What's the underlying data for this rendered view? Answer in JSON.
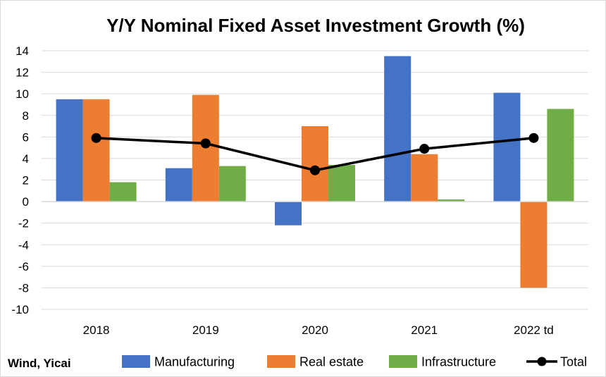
{
  "chart_data": {
    "type": "bar",
    "title": "Y/Y Nominal Fixed Asset Investment Growth (%)",
    "source": "Wind, Yicai",
    "categories": [
      "2018",
      "2019",
      "2020",
      "2021",
      "2022 td"
    ],
    "ylim": [
      -10,
      14
    ],
    "yticks": [
      14,
      12,
      10,
      8,
      6,
      4,
      2,
      0,
      -2,
      -4,
      -6,
      -8,
      -10
    ],
    "grid": true,
    "legend_position": "bottom",
    "series": [
      {
        "name": "Manufacturing",
        "type": "bar",
        "color": "#4472C4",
        "values": [
          9.5,
          3.1,
          -2.2,
          13.5,
          10.1
        ]
      },
      {
        "name": "Real estate",
        "type": "bar",
        "color": "#ED7D31",
        "values": [
          9.5,
          9.9,
          7.0,
          4.4,
          -8.0
        ]
      },
      {
        "name": "Infrastructure",
        "type": "bar",
        "color": "#70AD47",
        "values": [
          1.8,
          3.3,
          3.4,
          0.2,
          8.6
        ]
      },
      {
        "name": "Total",
        "type": "line",
        "color": "#000000",
        "values": [
          5.9,
          5.4,
          2.9,
          4.9,
          5.9
        ]
      }
    ]
  }
}
